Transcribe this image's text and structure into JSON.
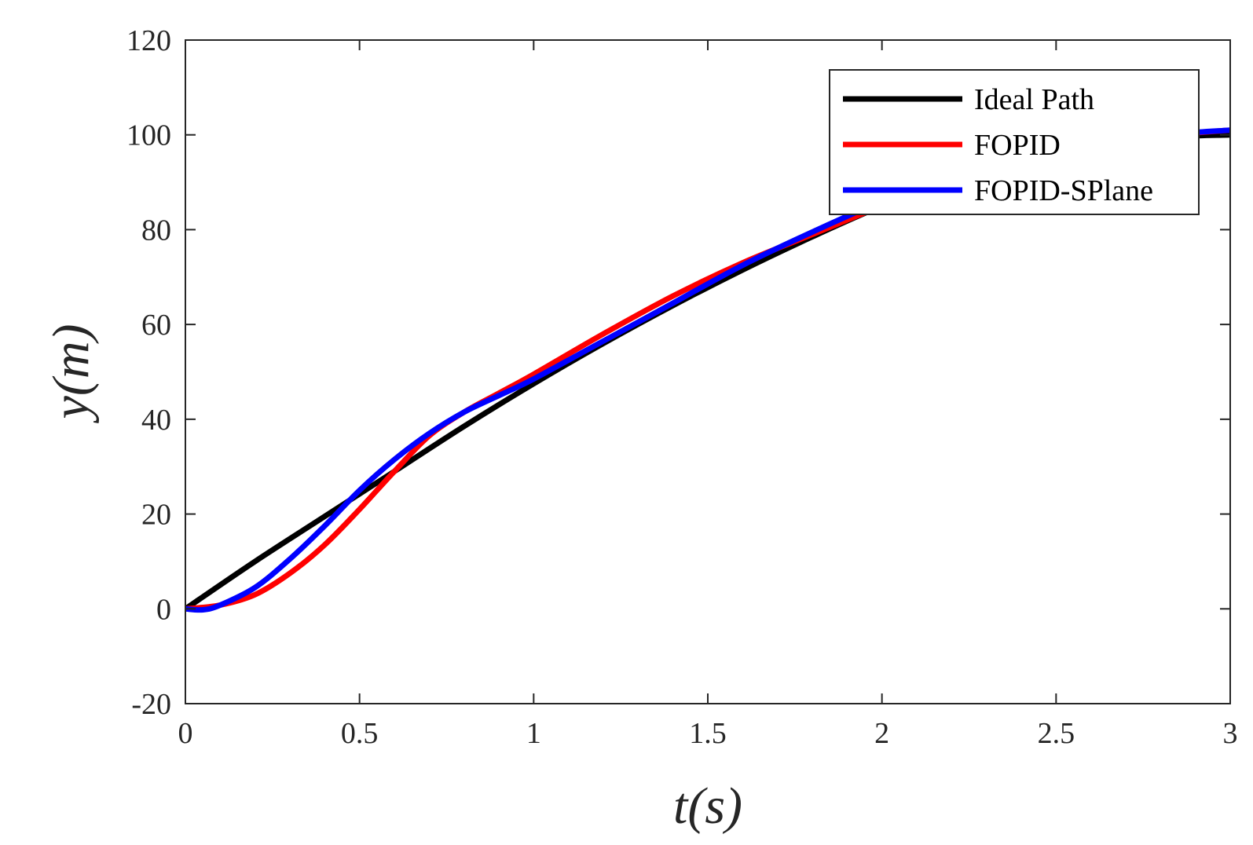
{
  "chart_data": {
    "type": "line",
    "xlabel": "t(s)",
    "ylabel": "y(m)",
    "xlim": [
      0,
      3
    ],
    "ylim": [
      -20,
      120
    ],
    "xticks": [
      0,
      0.5,
      1,
      1.5,
      2,
      2.5,
      3
    ],
    "xtick_labels": [
      "0",
      "0.5",
      "1",
      "1.5",
      "2",
      "2.5",
      "3"
    ],
    "yticks": [
      -20,
      0,
      20,
      40,
      60,
      80,
      100,
      120
    ],
    "ytick_labels": [
      "-20",
      "0",
      "20",
      "40",
      "60",
      "80",
      "100",
      "120"
    ],
    "grid": false,
    "legend_position": "top-right",
    "series": [
      {
        "name": "Ideal Path",
        "color": "#000000",
        "x": [
          0,
          0.2,
          0.4,
          0.6,
          0.8,
          1.0,
          1.2,
          1.4,
          1.6,
          1.8,
          2.0,
          2.2,
          2.4,
          2.6,
          2.8,
          3.0
        ],
        "y": [
          0,
          10,
          19.5,
          29,
          38.5,
          47.5,
          56,
          64,
          71.5,
          78.5,
          85,
          90.5,
          95,
          98,
          99.5,
          100
        ]
      },
      {
        "name": "FOPID",
        "color": "#ff0000",
        "x": [
          0,
          0.1,
          0.2,
          0.3,
          0.4,
          0.5,
          0.6,
          0.7,
          0.8,
          0.9,
          1.0,
          1.2,
          1.4,
          1.6,
          1.8,
          2.0,
          2.2,
          2.4,
          2.6,
          2.8,
          3.0
        ],
        "y": [
          0,
          0.8,
          3,
          7.5,
          13.5,
          21,
          29,
          36.5,
          41.5,
          45.5,
          49.5,
          58,
          66,
          73,
          79,
          85,
          90.5,
          95,
          98,
          99.8,
          101
        ]
      },
      {
        "name": "FOPID-SPlane",
        "color": "#0000ff",
        "x": [
          0,
          0.05,
          0.1,
          0.2,
          0.3,
          0.4,
          0.5,
          0.6,
          0.7,
          0.8,
          0.9,
          1.0,
          1.2,
          1.4,
          1.6,
          1.8,
          2.0,
          2.2,
          2.4,
          2.6,
          2.8,
          3.0
        ],
        "y": [
          0,
          -0.2,
          0.8,
          4.5,
          10.5,
          17.5,
          25,
          31.5,
          37,
          41.5,
          45,
          48.5,
          56.5,
          64.5,
          72.5,
          79.5,
          86,
          91.5,
          96,
          98.5,
          100,
          101
        ]
      }
    ]
  }
}
